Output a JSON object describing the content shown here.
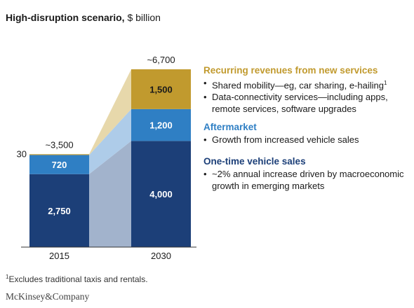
{
  "title": {
    "bold": "High-disruption scenario,",
    "rest": "$ billion"
  },
  "chart_data": {
    "type": "bar",
    "stacked": true,
    "categories": [
      "2015",
      "2030"
    ],
    "ylim": [
      0,
      6700
    ],
    "series": [
      {
        "name": "One-time vehicle sales",
        "values": [
          2750,
          4000
        ],
        "labels": [
          "2,750",
          "4,000"
        ],
        "color": "#1c3f78"
      },
      {
        "name": "Aftermarket",
        "values": [
          720,
          1200
        ],
        "labels": [
          "720",
          "1,200"
        ],
        "color": "#2f7fc4"
      },
      {
        "name": "Recurring revenues from new services",
        "values": [
          30,
          1500
        ],
        "labels": [
          "30",
          "1,500"
        ],
        "color": "#c19a2e"
      }
    ],
    "connector_colors": [
      "#a2b3cc",
      "#aecce9",
      "#e7d8ab"
    ],
    "totals": [
      "~3,500",
      "~6,700"
    ]
  },
  "legend": {
    "recurring": {
      "title": "Recurring revenues from new services",
      "items": [
        "Shared mobility—eg, car sharing, e-hailing",
        "Data-connectivity services—including apps, remote services, software upgrades"
      ],
      "footnote_mark": "1"
    },
    "aftermarket": {
      "title": "Aftermarket",
      "items": [
        "Growth from increased vehicle sales"
      ]
    },
    "onetime": {
      "title": "One-time vehicle sales",
      "items": [
        "~2% annual increase driven by macroeconomic growth in emerging markets"
      ]
    }
  },
  "footnote": {
    "mark": "1",
    "text": "Excludes traditional taxis and rentals."
  },
  "brand": "McKinsey&Company"
}
